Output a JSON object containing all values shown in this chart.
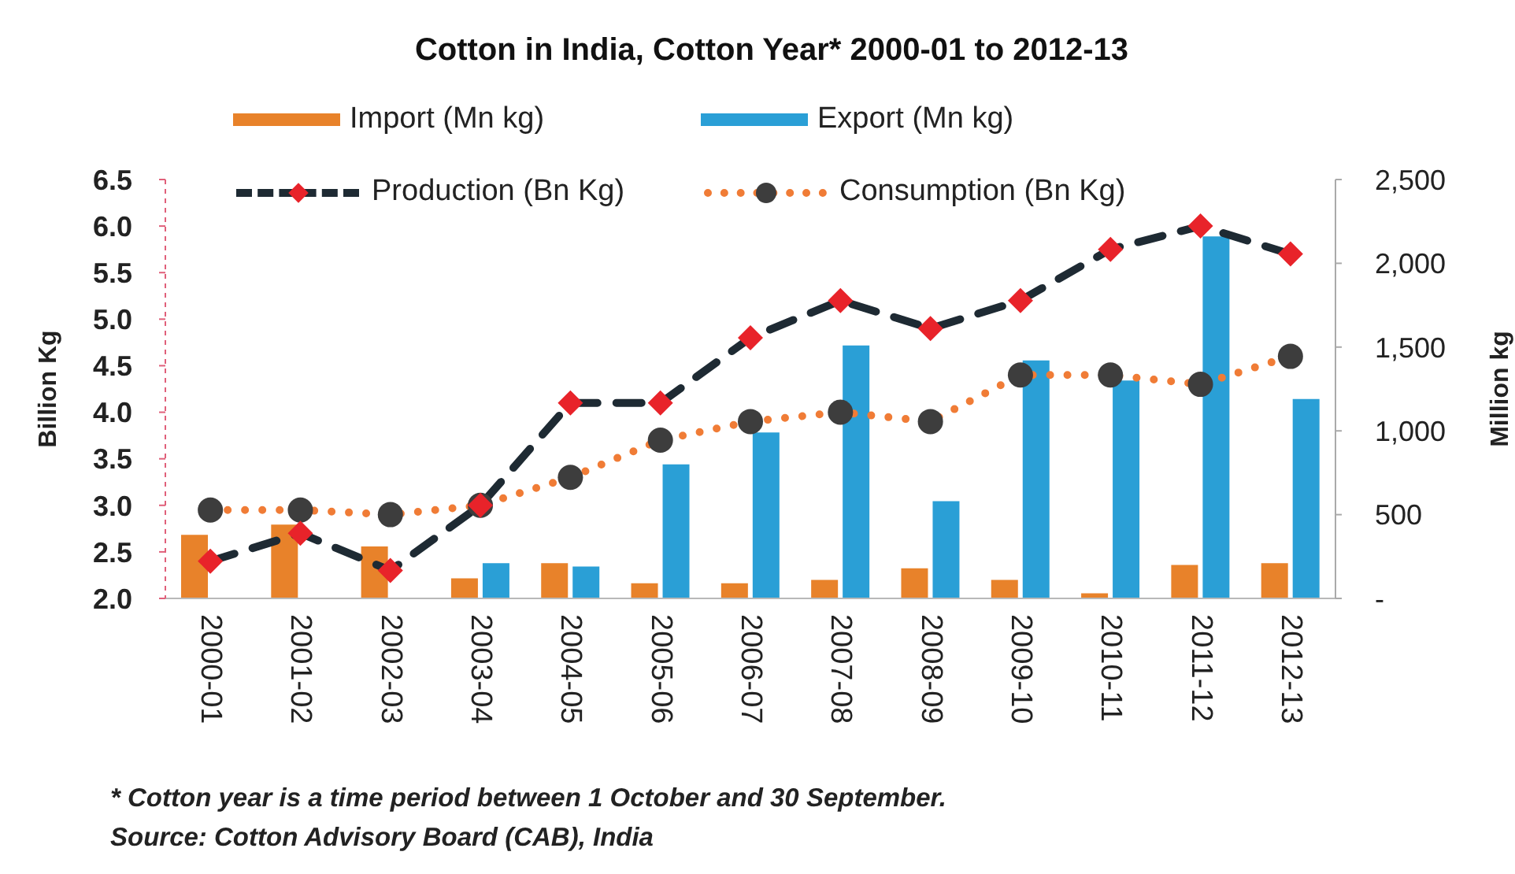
{
  "chart_data": {
    "type": "bar",
    "title": "Cotton in India, Cotton Year* 2000-01 to 2012-13",
    "ylabel": "Billion Kg",
    "y2label": "Million kg",
    "categories": [
      "2000-01",
      "2001-02",
      "2002-03",
      "2003-04",
      "2004-05",
      "2005-06",
      "2006-07",
      "2007-08",
      "2008-09",
      "2009-10",
      "2010-11",
      "2011-12",
      "2012-13"
    ],
    "series": [
      {
        "name": "Import (Mn kg)",
        "axis": "y2",
        "color": "#e8822a",
        "values": [
          380,
          440,
          310,
          120,
          210,
          90,
          90,
          110,
          180,
          110,
          30,
          200,
          210
        ]
      },
      {
        "name": "Export (Mn kg)",
        "axis": "y2",
        "color": "#2a9fd6",
        "values": [
          null,
          null,
          null,
          210,
          190,
          800,
          990,
          1510,
          580,
          1420,
          1300,
          2160,
          1190
        ]
      },
      {
        "name": "Production (Bn Kg)",
        "type": "line",
        "color": "#1e2a33",
        "colors": [
          "#e8232a",
          "#e8232a",
          "#e8232a",
          "#e8232a",
          "#e8232a",
          "#e8232a",
          "#e8232a",
          "#e8232a",
          "#e8232a",
          "#e8232a",
          "#e8232a",
          "#e8232a",
          "#e8232a"
        ],
        "marker": "diamond",
        "line_style": "dashed",
        "values": [
          2.4,
          2.7,
          2.3,
          3.0,
          4.1,
          4.1,
          4.8,
          5.2,
          4.9,
          5.2,
          5.75,
          6.0,
          5.7
        ]
      },
      {
        "name": "Consumption (Bn Kg)",
        "type": "line",
        "color": "#f07c36",
        "colors": [
          "#3d3d3d",
          "#3d3d3d",
          "#3d3d3d",
          "#3d3d3d",
          "#3d3d3d",
          "#3d3d3d",
          "#3d3d3d",
          "#3d3d3d",
          "#3d3d3d",
          "#3d3d3d",
          "#3d3d3d",
          "#3d3d3d",
          "#3d3d3d"
        ],
        "marker": "circle",
        "line_style": "dotted",
        "values": [
          2.95,
          2.95,
          2.9,
          3.0,
          3.3,
          3.7,
          3.9,
          4.0,
          3.9,
          4.4,
          4.4,
          4.3,
          4.6
        ]
      }
    ],
    "ylim": [
      2,
      6.5
    ],
    "yticks": [
      {
        "value": 2,
        "label": "2.0"
      },
      2.5,
      {
        "value": 3,
        "label": "3.0"
      },
      3.5,
      {
        "value": 4,
        "label": "4.0"
      },
      4.5,
      {
        "value": 5,
        "label": "5.0"
      },
      5.5,
      {
        "value": 6,
        "label": "6.0"
      },
      6.5
    ],
    "y2lim": [
      0,
      2500
    ],
    "y2ticks": [
      {
        "value": 0,
        "label": "-"
      },
      500,
      {
        "value": 1000,
        "label": "1,000"
      },
      {
        "value": 1500,
        "label": "1,500"
      },
      {
        "value": 2000,
        "label": "2,000"
      },
      {
        "value": 2500,
        "label": "2,500"
      }
    ],
    "legend": "top",
    "annotations": [
      "* Cotton year is a time period between 1 October and 30 September.",
      "Source: Cotton Advisory Board (CAB), India"
    ]
  }
}
